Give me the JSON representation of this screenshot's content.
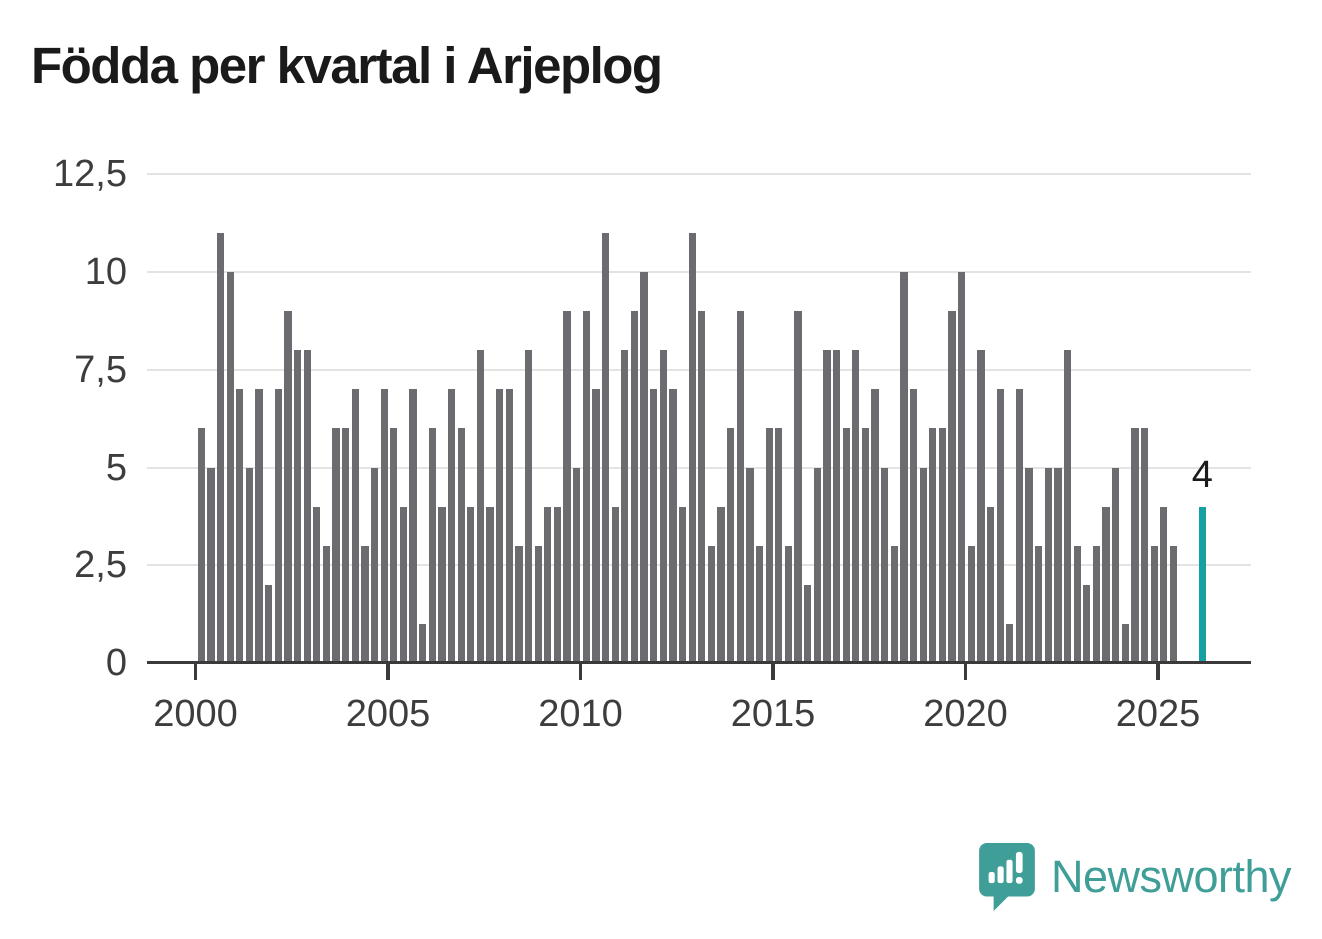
{
  "title": "Födda per kvartal i Arjeplog",
  "colors": {
    "bar": "#6b6b70",
    "highlight": "#16a0a2",
    "grid": "#e3e3e3",
    "axis": "#3a3a3a",
    "tick_label": "#3d3d3d",
    "title": "#1a1a1a",
    "logo": "#3f9e97"
  },
  "chart_data": {
    "type": "bar",
    "title": "Födda per kvartal i Arjeplog",
    "x_unit": "kvartal",
    "xlabel": "",
    "ylabel": "",
    "ylim": [
      0,
      12.5
    ],
    "grid": "horizontal",
    "y_ticks": [
      {
        "value": 0,
        "label": "0"
      },
      {
        "value": 2.5,
        "label": "2,5"
      },
      {
        "value": 5,
        "label": "5"
      },
      {
        "value": 7.5,
        "label": "7,5"
      },
      {
        "value": 10,
        "label": "10"
      },
      {
        "value": 12.5,
        "label": "12,5"
      }
    ],
    "x_ticks": [
      "2000",
      "2005",
      "2010",
      "2015",
      "2020",
      "2025"
    ],
    "years": [
      {
        "year": "2000",
        "values": [
          6,
          5,
          11,
          10
        ]
      },
      {
        "year": "2001",
        "values": [
          7,
          5,
          7,
          2
        ]
      },
      {
        "year": "2002",
        "values": [
          7,
          9,
          8,
          8
        ]
      },
      {
        "year": "2003",
        "values": [
          4,
          3,
          6,
          6
        ]
      },
      {
        "year": "2004",
        "values": [
          7,
          3,
          5,
          7
        ]
      },
      {
        "year": "2005",
        "values": [
          6,
          4,
          7,
          1
        ]
      },
      {
        "year": "2006",
        "values": [
          6,
          4,
          7,
          6
        ]
      },
      {
        "year": "2007",
        "values": [
          4,
          8,
          4,
          7
        ]
      },
      {
        "year": "2008",
        "values": [
          7,
          3,
          8,
          3
        ]
      },
      {
        "year": "2009",
        "values": [
          4,
          4,
          9,
          5
        ]
      },
      {
        "year": "2010",
        "values": [
          9,
          7,
          11,
          4
        ]
      },
      {
        "year": "2011",
        "values": [
          8,
          9,
          10,
          7
        ]
      },
      {
        "year": "2012",
        "values": [
          8,
          7,
          4,
          11
        ]
      },
      {
        "year": "2013",
        "values": [
          9,
          3,
          4,
          6
        ]
      },
      {
        "year": "2014",
        "values": [
          9,
          5,
          3,
          6
        ]
      },
      {
        "year": "2015",
        "values": [
          6,
          3,
          9,
          2
        ]
      },
      {
        "year": "2016",
        "values": [
          5,
          8,
          8,
          6
        ]
      },
      {
        "year": "2017",
        "values": [
          8,
          6,
          7,
          5
        ]
      },
      {
        "year": "2018",
        "values": [
          3,
          10,
          7,
          5
        ]
      },
      {
        "year": "2019",
        "values": [
          6,
          6,
          9,
          10
        ]
      },
      {
        "year": "2020",
        "values": [
          3,
          8,
          4,
          7
        ]
      },
      {
        "year": "2021",
        "values": [
          1,
          7,
          5,
          3
        ]
      },
      {
        "year": "2022",
        "values": [
          5,
          5,
          8,
          3
        ]
      },
      {
        "year": "2023",
        "values": [
          2,
          3,
          4,
          5
        ]
      },
      {
        "year": "2024",
        "values": [
          1,
          6,
          6,
          3
        ]
      },
      {
        "year": "2025",
        "values": [
          4,
          3
        ]
      }
    ],
    "highlight_bar": {
      "value": 4,
      "label": "4",
      "gap_slots": 1
    }
  },
  "logo": {
    "text": "Newsworthy"
  }
}
